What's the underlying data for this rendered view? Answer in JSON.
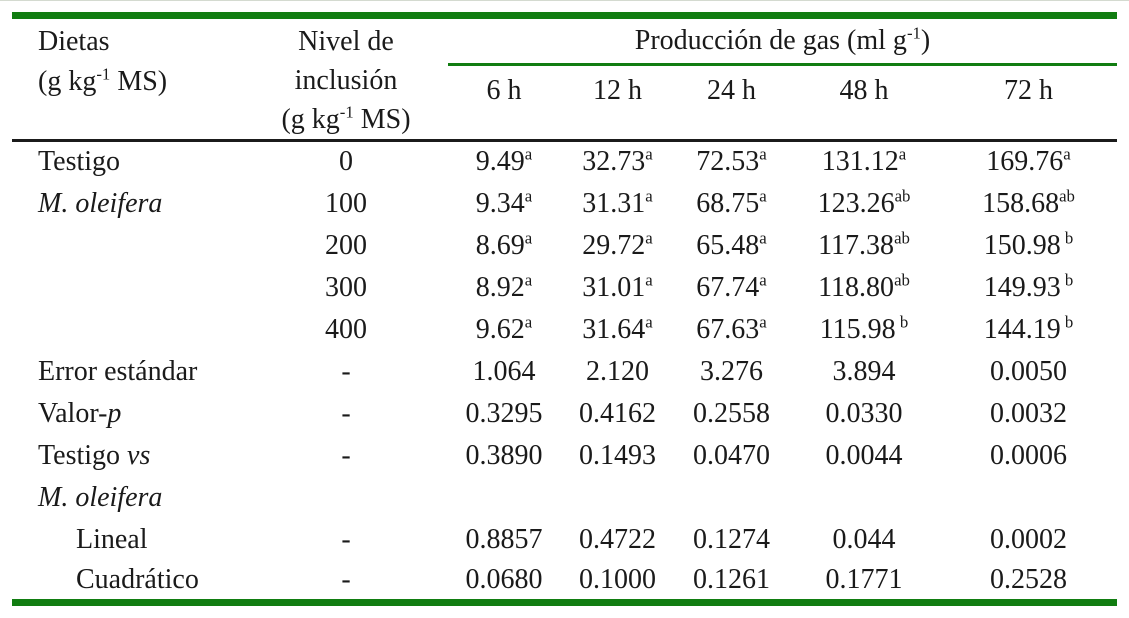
{
  "colors": {
    "green_rule": "#117d11",
    "dark_rule": "#1b1b1b",
    "text": "#1a1a1a"
  },
  "table": {
    "header": {
      "dietas_line1": "Dietas",
      "dietas_line2_parts": [
        {
          "t": "(g kg"
        },
        {
          "t": "-1",
          "sup": true
        },
        {
          "t": " MS)"
        }
      ],
      "nivel_line1": "Nivel de",
      "nivel_line2": "inclusión",
      "nivel_line3_parts": [
        {
          "t": "(g kg"
        },
        {
          "t": "-1",
          "sup": true
        },
        {
          "t": " MS)"
        }
      ],
      "gas_title_parts": [
        {
          "t": "Producción de gas (ml g"
        },
        {
          "t": "-1",
          "sup": true
        },
        {
          "t": ")"
        }
      ],
      "hours": [
        "6 h",
        "12 h",
        "24 h",
        "48 h",
        "72 h"
      ]
    },
    "rows": [
      {
        "label_parts": [
          {
            "t": "Testigo"
          }
        ],
        "level": "0",
        "values": [
          {
            "v": "9.49",
            "s": "a"
          },
          {
            "v": "32.73",
            "s": "a"
          },
          {
            "v": "72.53",
            "s": "a"
          },
          {
            "v": "131.12",
            "s": "a"
          },
          {
            "v": "169.76",
            "s": "a"
          }
        ]
      },
      {
        "label_parts": [
          {
            "t": "M. oleifera",
            "i": true
          }
        ],
        "level": "100",
        "values": [
          {
            "v": "9.34",
            "s": "a"
          },
          {
            "v": "31.31",
            "s": "a"
          },
          {
            "v": "68.75",
            "s": "a"
          },
          {
            "v": "123.26",
            "s": "ab"
          },
          {
            "v": "158.68",
            "s": "ab"
          }
        ]
      },
      {
        "label_parts": [],
        "level": "200",
        "values": [
          {
            "v": "8.69",
            "s": "a"
          },
          {
            "v": "29.72",
            "s": "a"
          },
          {
            "v": "65.48",
            "s": "a"
          },
          {
            "v": "117.38",
            "s": "ab"
          },
          {
            "v": "150.98",
            "s": " b"
          }
        ]
      },
      {
        "label_parts": [],
        "level": "300",
        "values": [
          {
            "v": "8.92",
            "s": "a"
          },
          {
            "v": "31.01",
            "s": "a"
          },
          {
            "v": "67.74",
            "s": "a"
          },
          {
            "v": "118.80",
            "s": "ab"
          },
          {
            "v": "149.93",
            "s": " b"
          }
        ]
      },
      {
        "label_parts": [],
        "level": "400",
        "values": [
          {
            "v": "9.62",
            "s": "a"
          },
          {
            "v": "31.64",
            "s": "a"
          },
          {
            "v": "67.63",
            "s": "a"
          },
          {
            "v": "115.98",
            "s": " b"
          },
          {
            "v": "144.19",
            "s": " b"
          }
        ]
      },
      {
        "label_parts": [
          {
            "t": "Error estándar"
          }
        ],
        "level": "-",
        "values": [
          {
            "v": "1.064"
          },
          {
            "v": "2.120"
          },
          {
            "v": "3.276"
          },
          {
            "v": "3.894"
          },
          {
            "v": "0.0050"
          }
        ]
      },
      {
        "label_parts": [
          {
            "t": "Valor-"
          },
          {
            "t": "p",
            "i": true
          }
        ],
        "level": "-",
        "values": [
          {
            "v": "0.3295"
          },
          {
            "v": "0.4162"
          },
          {
            "v": "0.2558"
          },
          {
            "v": "0.0330"
          },
          {
            "v": "0.0032"
          }
        ]
      },
      {
        "label_parts": [
          {
            "t": "Testigo "
          },
          {
            "t": "vs",
            "i": true
          }
        ],
        "level": "-",
        "values": [
          {
            "v": "0.3890"
          },
          {
            "v": "0.1493"
          },
          {
            "v": "0.0470"
          },
          {
            "v": "0.0044"
          },
          {
            "v": "0.0006"
          }
        ]
      },
      {
        "label_parts": [
          {
            "t": "M. oleifera",
            "i": true
          }
        ],
        "level": "",
        "values": []
      },
      {
        "label_parts": [
          {
            "t": "Lineal"
          }
        ],
        "indent": true,
        "level": "-",
        "values": [
          {
            "v": "0.8857"
          },
          {
            "v": "0.4722"
          },
          {
            "v": "0.1274"
          },
          {
            "v": "0.044"
          },
          {
            "v": "0.0002"
          }
        ]
      },
      {
        "label_parts": [
          {
            "t": "Cuadrático"
          }
        ],
        "indent": true,
        "level": "-",
        "values": [
          {
            "v": "0.0680"
          },
          {
            "v": "0.1000"
          },
          {
            "v": "0.1261"
          },
          {
            "v": "0.1771"
          },
          {
            "v": "0.2528"
          }
        ]
      }
    ]
  },
  "chart_data": {
    "type": "table",
    "title": "Producción de gas (ml g-1)",
    "columns": [
      "Dietas (g kg-1 MS)",
      "Nivel de inclusión (g kg-1 MS)",
      "6 h",
      "12 h",
      "24 h",
      "48 h",
      "72 h"
    ],
    "rows": [
      [
        "Testigo",
        "0",
        "9.49 a",
        "32.73 a",
        "72.53 a",
        "131.12 a",
        "169.76 a"
      ],
      [
        "M. oleifera",
        "100",
        "9.34 a",
        "31.31 a",
        "68.75 a",
        "123.26 ab",
        "158.68 ab"
      ],
      [
        "",
        "200",
        "8.69 a",
        "29.72 a",
        "65.48 a",
        "117.38 ab",
        "150.98 b"
      ],
      [
        "",
        "300",
        "8.92 a",
        "31.01 a",
        "67.74 a",
        "118.80 ab",
        "149.93 b"
      ],
      [
        "",
        "400",
        "9.62 a",
        "31.64 a",
        "67.63 a",
        "115.98 b",
        "144.19 b"
      ],
      [
        "Error estándar",
        "-",
        "1.064",
        "2.120",
        "3.276",
        "3.894",
        "0.0050"
      ],
      [
        "Valor-p",
        "-",
        "0.3295",
        "0.4162",
        "0.2558",
        "0.0330",
        "0.0032"
      ],
      [
        "Testigo vs M. oleifera",
        "-",
        "0.3890",
        "0.1493",
        "0.0470",
        "0.0044",
        "0.0006"
      ],
      [
        "Lineal",
        "-",
        "0.8857",
        "0.4722",
        "0.1274",
        "0.044",
        "0.0002"
      ],
      [
        "Cuadrático",
        "-",
        "0.0680",
        "0.1000",
        "0.1261",
        "0.1771",
        "0.2528"
      ]
    ]
  }
}
